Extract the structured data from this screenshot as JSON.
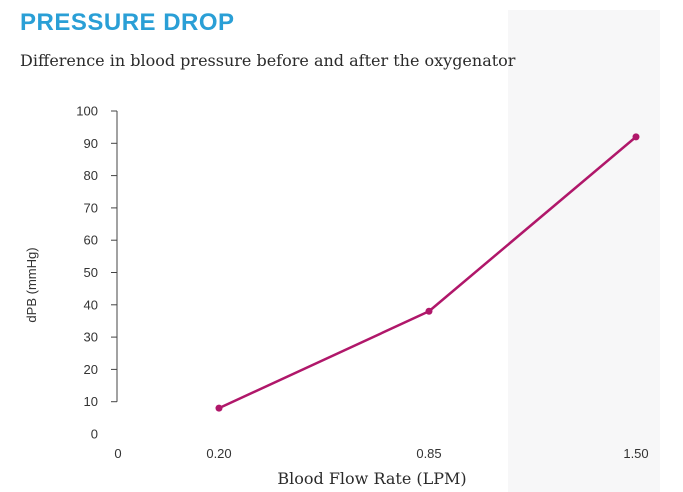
{
  "title": "PRESSURE DROP",
  "subtitle": "Difference in blood pressure before and after the oxygenator",
  "colors": {
    "title": "#2a9fd6",
    "series": "#b0176a",
    "axis": "#444444"
  },
  "chart_data": {
    "type": "line",
    "x": [
      0.2,
      0.85,
      1.5
    ],
    "x_tick_labels": [
      "0",
      "0.20",
      "0.85",
      "1.50"
    ],
    "series": [
      {
        "values": [
          8,
          38,
          92
        ]
      }
    ],
    "xlabel": "Blood Flow Rate (LPM)",
    "ylabel": "dPB (mmHg)",
    "ylim": [
      0,
      100
    ],
    "y_ticks": [
      0,
      10,
      20,
      30,
      40,
      50,
      60,
      70,
      80,
      90,
      100
    ],
    "grid": false,
    "markers": true
  }
}
